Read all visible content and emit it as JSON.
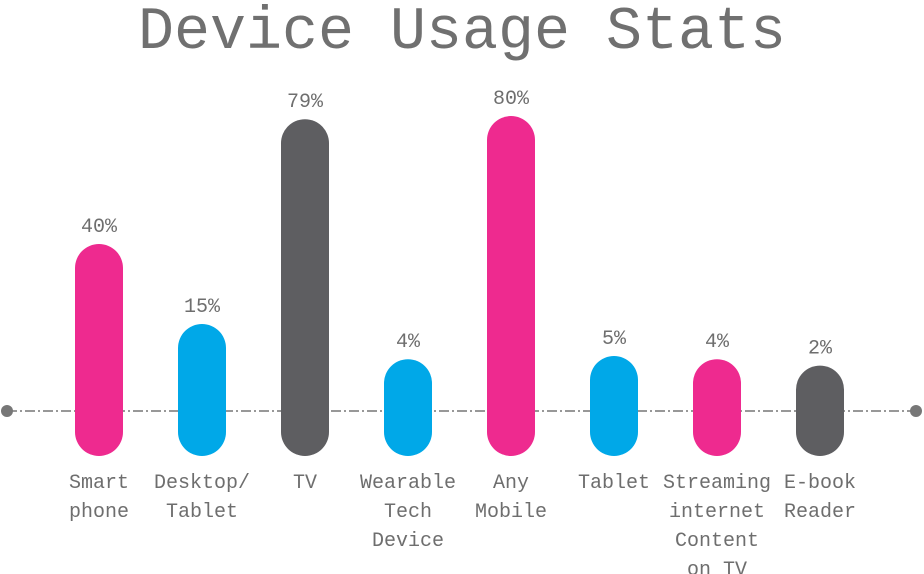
{
  "chart_data": {
    "type": "bar",
    "title": "Device Usage Stats",
    "categories": [
      "Smart\nphone",
      "Desktop/\nTablet",
      "TV",
      "Wearable\nTech\nDevice",
      "Any\nMobile",
      "Tablet",
      "Streaming\ninternet\nContent\non TV",
      "E-book\nReader"
    ],
    "values": [
      40,
      15,
      79,
      4,
      80,
      5,
      4,
      2
    ],
    "value_labels": [
      "40%",
      "15%",
      "79%",
      "4%",
      "80%",
      "5%",
      "4%",
      "2%"
    ],
    "colors": [
      "#ee2a8f",
      "#00a8e8",
      "#5e5e61",
      "#00a8e8",
      "#ee2a8f",
      "#00a8e8",
      "#ee2a8f",
      "#5e5e61"
    ]
  }
}
